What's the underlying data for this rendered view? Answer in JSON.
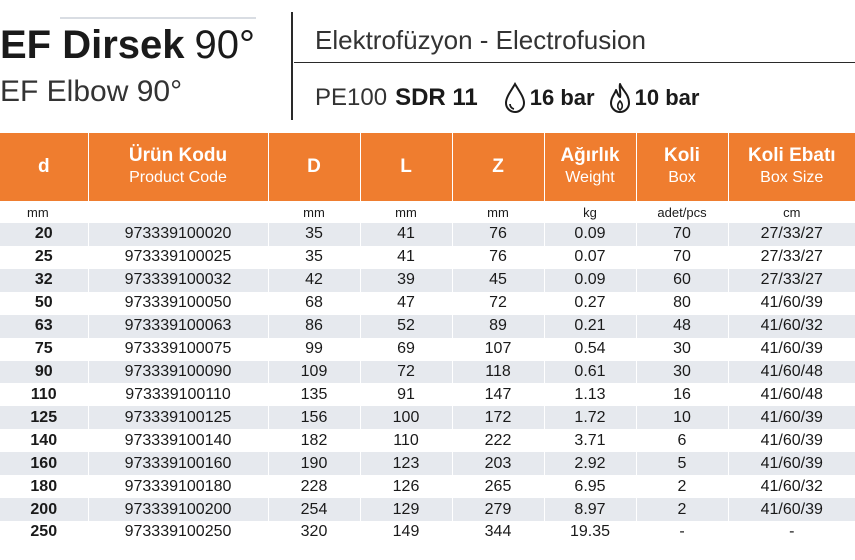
{
  "header": {
    "title_bold": "EF Dirsek",
    "title_angle": "90°",
    "subtitle": "EF Elbow 90°",
    "process": "Elektrofüzyon - Electrofusion",
    "material": "PE100",
    "sdr": "SDR 11",
    "water_pressure": "16 bar",
    "gas_pressure": "10 bar",
    "water_icon": "water-drop-icon",
    "gas_icon": "flame-icon",
    "accent_color": "#ef7d2f"
  },
  "table": {
    "columns": [
      {
        "main": "d",
        "sub": ""
      },
      {
        "main": "Ürün Kodu",
        "sub": "Product Code"
      },
      {
        "main": "D",
        "sub": ""
      },
      {
        "main": "L",
        "sub": ""
      },
      {
        "main": "Z",
        "sub": ""
      },
      {
        "main": "Ağırlık",
        "sub": "Weight"
      },
      {
        "main": "Koli",
        "sub": "Box"
      },
      {
        "main": "Koli Ebatı",
        "sub": "Box Size"
      }
    ],
    "units": [
      "mm",
      "",
      "mm",
      "mm",
      "mm",
      "kg",
      "adet/pcs",
      "cm"
    ],
    "rows": [
      [
        "20",
        "973339100020",
        "35",
        "41",
        "76",
        "0.09",
        "70",
        "27/33/27"
      ],
      [
        "25",
        "973339100025",
        "35",
        "41",
        "76",
        "0.07",
        "70",
        "27/33/27"
      ],
      [
        "32",
        "973339100032",
        "42",
        "39",
        "45",
        "0.09",
        "60",
        "27/33/27"
      ],
      [
        "50",
        "973339100050",
        "68",
        "47",
        "72",
        "0.27",
        "80",
        "41/60/39"
      ],
      [
        "63",
        "973339100063",
        "86",
        "52",
        "89",
        "0.21",
        "48",
        "41/60/32"
      ],
      [
        "75",
        "973339100075",
        "99",
        "69",
        "107",
        "0.54",
        "30",
        "41/60/39"
      ],
      [
        "90",
        "973339100090",
        "109",
        "72",
        "118",
        "0.61",
        "30",
        "41/60/48"
      ],
      [
        "110",
        "973339100110",
        "135",
        "91",
        "147",
        "1.13",
        "16",
        "41/60/48"
      ],
      [
        "125",
        "973339100125",
        "156",
        "100",
        "172",
        "1.72",
        "10",
        "41/60/39"
      ],
      [
        "140",
        "973339100140",
        "182",
        "110",
        "222",
        "3.71",
        "6",
        "41/60/39"
      ],
      [
        "160",
        "973339100160",
        "190",
        "123",
        "203",
        "2.92",
        "5",
        "41/60/39"
      ],
      [
        "180",
        "973339100180",
        "228",
        "126",
        "265",
        "6.95",
        "2",
        "41/60/32"
      ],
      [
        "200",
        "973339100200",
        "254",
        "129",
        "279",
        "8.97",
        "2",
        "41/60/39"
      ],
      [
        "250",
        "973339100250",
        "320",
        "149",
        "344",
        "19.35",
        "-",
        "-"
      ]
    ]
  }
}
